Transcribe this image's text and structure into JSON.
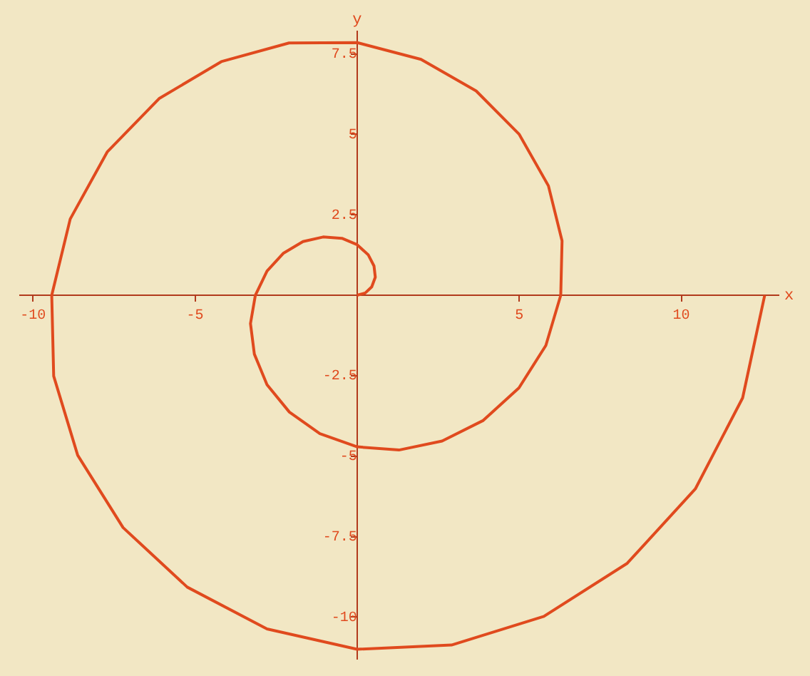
{
  "chart_data": {
    "type": "line",
    "xlabel": "x",
    "ylabel": "y",
    "color": "#e04a1e",
    "marker": "none",
    "grid": false,
    "legend": false,
    "xlim": [
      -10.4,
      13
    ],
    "ylim": [
      -11.3,
      8.2
    ],
    "xticks": [
      -10,
      -5,
      5,
      10
    ],
    "yticks": [
      -10,
      -7.5,
      -5,
      -2.5,
      2.5,
      5,
      7.5
    ],
    "x": [
      0,
      0.25,
      0.45,
      0.56,
      0.52,
      0.34,
      0,
      -0.47,
      -1.05,
      -1.67,
      -2.27,
      -2.78,
      -3.14,
      -3.29,
      -3.17,
      -2.78,
      -2.09,
      -1.15,
      0,
      1.29,
      2.62,
      3.89,
      4.99,
      5.82,
      6.28,
      6.32,
      5.9,
      5,
      3.67,
      1.97,
      0,
      -2.1,
      -4.19,
      -6.11,
      -7.71,
      -8.85,
      -9.42,
      -9.36,
      -8.62,
      -7.22,
      -5.24,
      -2.78,
      0,
      2.91,
      5.76,
      8.33,
      10.43,
      11.89,
      12.57
    ],
    "values": [
      0,
      0.07,
      0.26,
      0.56,
      0.91,
      1.26,
      1.57,
      1.77,
      1.81,
      1.67,
      1.31,
      0.75,
      0,
      -0.88,
      -1.83,
      -2.78,
      -3.63,
      -4.3,
      -4.71,
      -4.81,
      -4.53,
      -3.89,
      -2.88,
      -1.56,
      0,
      1.69,
      3.4,
      5,
      6.35,
      7.33,
      7.85,
      7.84,
      7.26,
      6.11,
      4.45,
      2.37,
      0,
      -2.51,
      -4.97,
      -7.22,
      -9.07,
      -10.37,
      -11,
      -10.87,
      -9.98,
      -8.33,
      -6.02,
      -3.19,
      0
    ]
  }
}
